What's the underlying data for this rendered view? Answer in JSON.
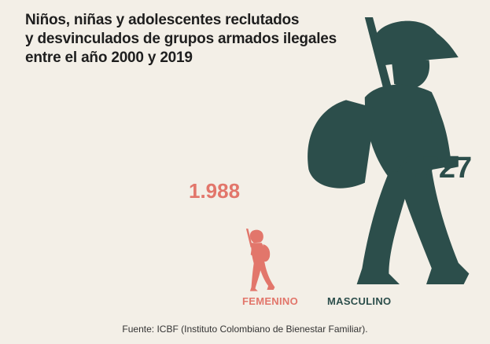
{
  "title_lines": [
    "Niños, niñas y adolescentes reclutados",
    "y desvinculados de grupos armados ilegales",
    "entre el año 2000 y 2019"
  ],
  "source": "Fuente: ICBF (Instituto Colombiano de Bienestar Familiar).",
  "colors": {
    "background": "#f3efe7",
    "femenino": "#e2766b",
    "masculino": "#2c4e4b"
  },
  "chart_data": {
    "type": "bar",
    "title": "Niños, niñas y adolescentes reclutados y desvinculados de grupos armados ilegales entre el año 2000 y 2019",
    "categories": [
      "FEMENINO",
      "MASCULINO"
    ],
    "values": [
      1988,
      4727
    ],
    "value_labels": [
      "1.988",
      "4.727"
    ],
    "icons": [
      "female-soldier-icon",
      "male-soldier-icon"
    ]
  }
}
